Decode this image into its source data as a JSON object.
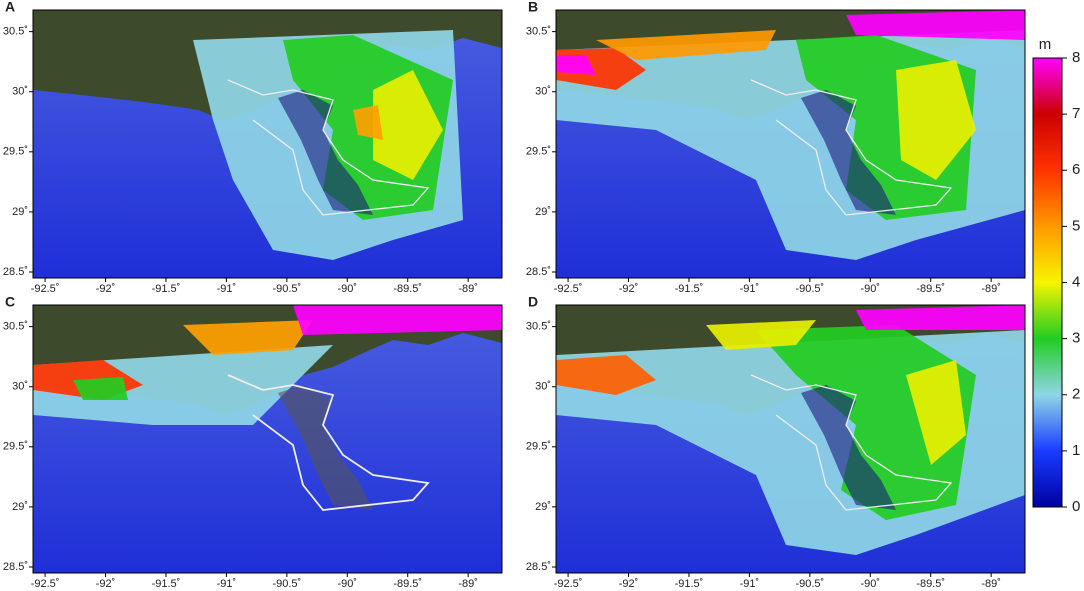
{
  "panels": [
    {
      "label": "A"
    },
    {
      "label": "B"
    },
    {
      "label": "C"
    },
    {
      "label": "D"
    }
  ],
  "lon_range": [
    -92.6,
    -88.72
  ],
  "lat_range": [
    28.45,
    30.68
  ],
  "lon_ticks": [
    {
      "value": -92.5,
      "label": "-92.5˚"
    },
    {
      "value": -92,
      "label": "-92˚"
    },
    {
      "value": -91.5,
      "label": "-91.5˚"
    },
    {
      "value": -91,
      "label": "-91˚"
    },
    {
      "value": -90.5,
      "label": "-90.5˚"
    },
    {
      "value": -90,
      "label": "-90˚"
    },
    {
      "value": -89.5,
      "label": "-89.5˚"
    },
    {
      "value": -89,
      "label": "-89˚"
    }
  ],
  "lat_ticks": [
    {
      "value": 28.5,
      "label": "28.5˚"
    },
    {
      "value": 29,
      "label": "29˚"
    },
    {
      "value": 29.5,
      "label": "29.5˚"
    },
    {
      "value": 30,
      "label": "30˚"
    },
    {
      "value": 30.5,
      "label": "30.5˚"
    }
  ],
  "colorbar": {
    "unit": "m",
    "range": [
      0,
      8
    ],
    "ticks": [
      0,
      1,
      2,
      3,
      4,
      5,
      6,
      7,
      8
    ]
  }
}
